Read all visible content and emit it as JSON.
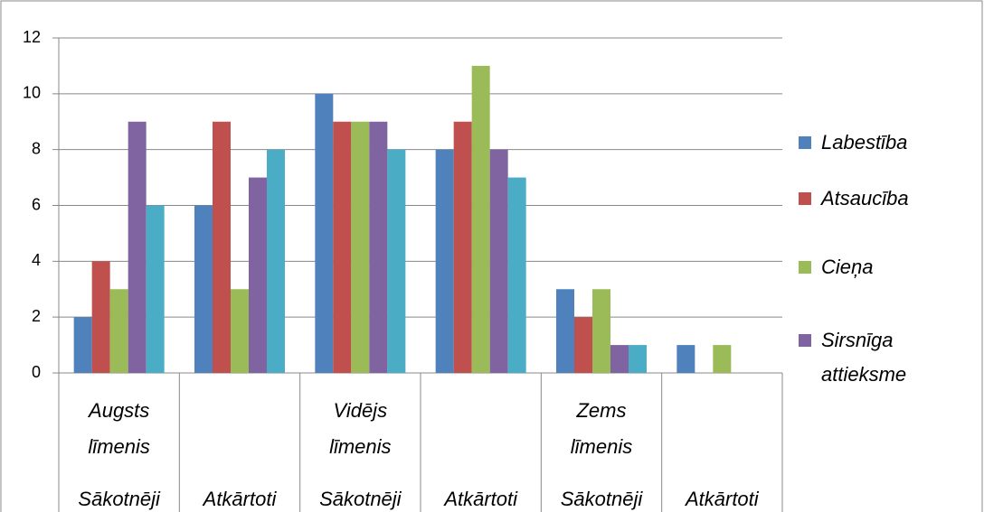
{
  "chart_data": {
    "type": "bar",
    "categories": [
      "Sākotnēji",
      "Atkārtoti",
      "Sākotnēji",
      "Atkārtoti",
      "Sākotnēji",
      "Atkārtoti"
    ],
    "groups": [
      "Augsts līmenis",
      "Vidējs līmenis",
      "Zems līmenis"
    ],
    "series": [
      {
        "name": "Labestība",
        "color": "#4f81bd",
        "values": [
          2,
          6,
          10,
          8,
          3,
          1
        ]
      },
      {
        "name": "Atsaucība",
        "color": "#c0504d",
        "values": [
          4,
          9,
          9,
          9,
          2,
          0
        ]
      },
      {
        "name": "Cieņa",
        "color": "#9bbb59",
        "values": [
          3,
          3,
          9,
          11,
          3,
          1
        ]
      },
      {
        "name": "Sirsnīga attieksme",
        "color": "#8064a2",
        "values": [
          9,
          7,
          9,
          8,
          1,
          0
        ]
      },
      {
        "name": null,
        "color": "#4bacc6",
        "values": [
          6,
          8,
          8,
          7,
          1,
          0
        ]
      }
    ],
    "ylim": [
      0,
      12
    ],
    "yticks": [
      0,
      2,
      4,
      6,
      8,
      10,
      12
    ],
    "grid": true,
    "legend": "right"
  }
}
